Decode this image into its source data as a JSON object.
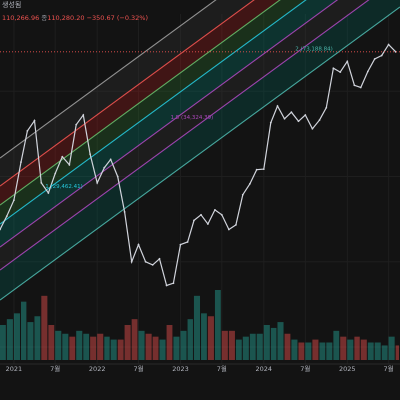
{
  "header": {
    "title": "생성됨"
  },
  "ohlc": {
    "open_value": "110,266.96",
    "close_label": "종",
    "close_value": "110,280.20",
    "change": "−350.67 (−0.32%)"
  },
  "colors": {
    "background": "#131313",
    "price_up": "#26a69a",
    "price_down": "#ef5350",
    "price_line": "#d1d4dc",
    "grid": "#1e1e1e",
    "band_red": "#b71c1c",
    "band_green": "#2e7d32",
    "band_teal": "#00897b",
    "band_gray": "#3a3a3a",
    "line_purple": "#ab47bc",
    "line_cyan": "#26c6da",
    "line_mint": "#4db6ac"
  },
  "chart_data": {
    "type": "line",
    "title": "",
    "x_tick_labels": [
      "2021",
      "7월",
      "2022",
      "7월",
      "2023",
      "7월",
      "2024",
      "7월",
      "2025",
      "7월"
    ],
    "x_tick_dates": [
      "2021-01",
      "2021-07",
      "2022-01",
      "2022-07",
      "2023-01",
      "2023-07",
      "2024-01",
      "2024-07",
      "2025-01",
      "2025-07"
    ],
    "y_scale": "log",
    "grid": true,
    "annotations": [
      {
        "text": "1 (29,462.41)",
        "x": "2021-07",
        "color": "#26c6da"
      },
      {
        "text": "1.5 (34,324.39)",
        "x": "2023-01",
        "color": "#ab47bc"
      },
      {
        "text": "2 (73,188.84)",
        "x": "2024-07",
        "color": "#4db6ac"
      }
    ],
    "price_series": {
      "x": [
        "2020-11",
        "2020-12",
        "2021-01",
        "2021-02",
        "2021-03",
        "2021-04",
        "2021-05",
        "2021-06",
        "2021-07",
        "2021-08",
        "2021-09",
        "2021-10",
        "2021-11",
        "2021-12",
        "2022-01",
        "2022-02",
        "2022-03",
        "2022-04",
        "2022-05",
        "2022-06",
        "2022-07",
        "2022-08",
        "2022-09",
        "2022-10",
        "2022-11",
        "2022-12",
        "2023-01",
        "2023-02",
        "2023-03",
        "2023-04",
        "2023-05",
        "2023-06",
        "2023-07",
        "2023-08",
        "2023-09",
        "2023-10",
        "2023-11",
        "2023-12",
        "2024-01",
        "2024-02",
        "2024-03",
        "2024-04",
        "2024-05",
        "2024-06",
        "2024-07",
        "2024-08",
        "2024-09",
        "2024-10",
        "2024-11",
        "2024-12",
        "2025-01",
        "2025-02",
        "2025-03",
        "2025-04",
        "2025-05",
        "2025-06",
        "2025-07",
        "2025-08"
      ],
      "y": [
        26000,
        29000,
        33000,
        45000,
        58000,
        63000,
        38000,
        35000,
        41000,
        47000,
        44000,
        61000,
        66000,
        48000,
        38000,
        43000,
        46000,
        40000,
        30000,
        20000,
        23000,
        20000,
        19500,
        20500,
        16500,
        16800,
        23000,
        23500,
        28000,
        29300,
        27200,
        30500,
        29300,
        26000,
        27000,
        34500,
        37700,
        42300,
        42500,
        62000,
        71000,
        64000,
        67500,
        62700,
        66000,
        59000,
        63300,
        70000,
        96500,
        93500,
        102000,
        84000,
        82500,
        94000,
        104000,
        107000,
        117000,
        110280
      ]
    },
    "volume_series": {
      "x": [
        "2020-11",
        "2020-12",
        "2021-01",
        "2021-02",
        "2021-03",
        "2021-04",
        "2021-05",
        "2021-06",
        "2021-07",
        "2021-08",
        "2021-09",
        "2021-10",
        "2021-11",
        "2021-12",
        "2022-01",
        "2022-02",
        "2022-03",
        "2022-04",
        "2022-05",
        "2022-06",
        "2022-07",
        "2022-08",
        "2022-09",
        "2022-10",
        "2022-11",
        "2022-12",
        "2023-01",
        "2023-02",
        "2023-03",
        "2023-04",
        "2023-05",
        "2023-06",
        "2023-07",
        "2023-08",
        "2023-09",
        "2023-10",
        "2023-11",
        "2023-12",
        "2024-01",
        "2024-02",
        "2024-03",
        "2024-04",
        "2024-05",
        "2024-06",
        "2024-07",
        "2024-08",
        "2024-09",
        "2024-10",
        "2024-11",
        "2024-12",
        "2025-01",
        "2025-02",
        "2025-03",
        "2025-04",
        "2025-05",
        "2025-06",
        "2025-07",
        "2025-08"
      ],
      "y": [
        12,
        14,
        16,
        20,
        13,
        15,
        22,
        12,
        10,
        9,
        8,
        10,
        9,
        8,
        9,
        8,
        7,
        7,
        12,
        14,
        10,
        9,
        8,
        7,
        12,
        8,
        10,
        14,
        22,
        16,
        15,
        24,
        10,
        10,
        7,
        8,
        9,
        9,
        12,
        11,
        13,
        9,
        7,
        6,
        6,
        7,
        6,
        6,
        10,
        8,
        7,
        8,
        7,
        6,
        6,
        5,
        8,
        5
      ],
      "up": [
        true,
        true,
        true,
        true,
        true,
        true,
        false,
        false,
        true,
        true,
        false,
        true,
        true,
        false,
        false,
        true,
        true,
        false,
        false,
        false,
        true,
        false,
        false,
        true,
        false,
        true,
        true,
        true,
        true,
        true,
        false,
        true,
        false,
        false,
        true,
        true,
        true,
        true,
        true,
        true,
        true,
        false,
        true,
        false,
        true,
        false,
        true,
        true,
        true,
        false,
        true,
        false,
        false,
        true,
        true,
        true,
        true,
        false
      ]
    },
    "bands": [
      {
        "name": "upper-gray",
        "color": "#3a3a3a"
      },
      {
        "name": "red",
        "color": "#b71c1c"
      },
      {
        "name": "green",
        "color": "#2e7d32"
      },
      {
        "name": "teal",
        "color": "#00897b"
      },
      {
        "name": "lower-gray",
        "color": "#3a3a3a"
      },
      {
        "name": "bottom-teal",
        "color": "#00695c"
      }
    ],
    "current_price_line": {
      "value": 110280,
      "color": "#ef5350"
    }
  }
}
